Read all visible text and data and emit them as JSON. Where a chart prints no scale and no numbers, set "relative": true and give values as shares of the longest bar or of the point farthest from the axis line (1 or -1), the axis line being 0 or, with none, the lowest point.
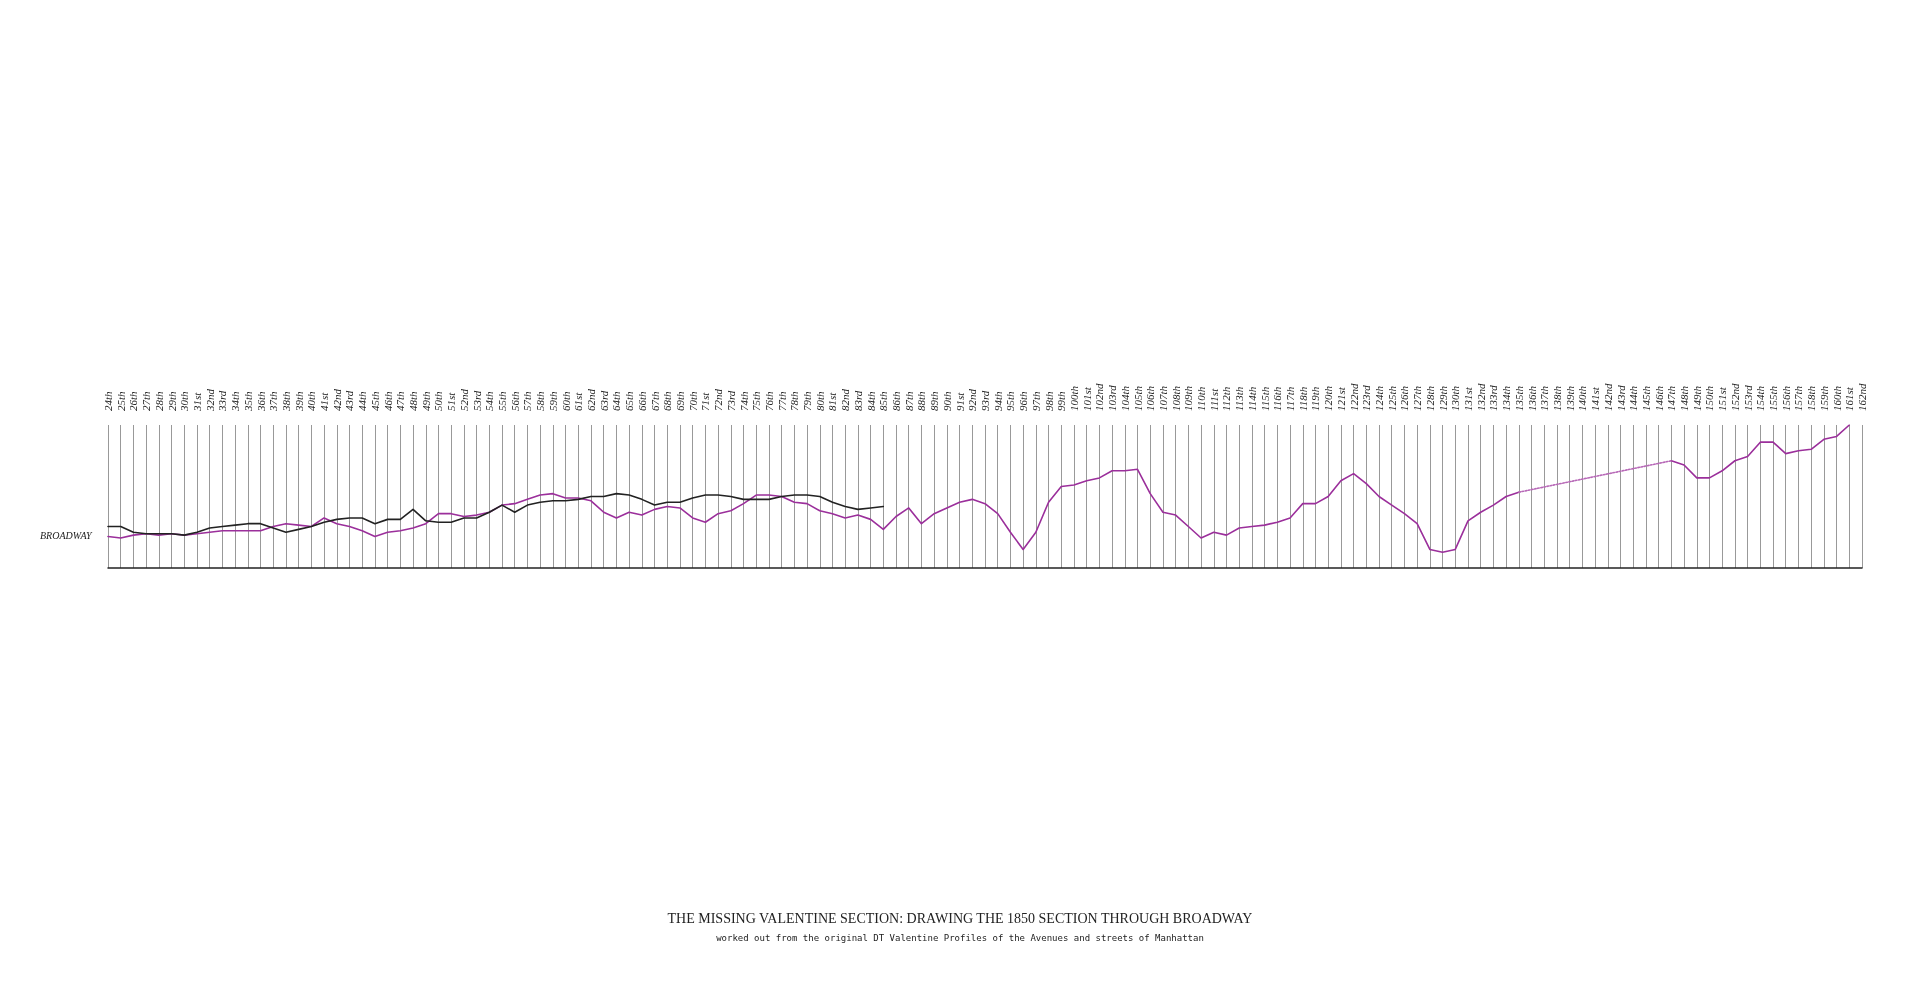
{
  "chart_data": {
    "type": "line",
    "relative": true,
    "grid": "x",
    "marker": "none",
    "title": "THE MISSING VALENTINE SECTION: DRAWING THE 1850 SECTION THROUGH BROADWAY",
    "subtitle": "worked out from the original DT Valentine Profiles of the Avenues and streets of Manhattan",
    "ylabel": "BROADWAY",
    "categories": [
      "24th",
      "25th",
      "26th",
      "27th",
      "28th",
      "29th",
      "30th",
      "31st",
      "32nd",
      "33rd",
      "34th",
      "35th",
      "36th",
      "37th",
      "38th",
      "39th",
      "40th",
      "41st",
      "42nd",
      "43rd",
      "44th",
      "45th",
      "46th",
      "47th",
      "48th",
      "49th",
      "50th",
      "51st",
      "52nd",
      "53rd",
      "54th",
      "55th",
      "56th",
      "57th",
      "58th",
      "59th",
      "60th",
      "61st",
      "62nd",
      "63rd",
      "64th",
      "65th",
      "66th",
      "67th",
      "68th",
      "69th",
      "70th",
      "71st",
      "72nd",
      "73rd",
      "74th",
      "75th",
      "76th",
      "77th",
      "78th",
      "79th",
      "80th",
      "81st",
      "82nd",
      "83rd",
      "84th",
      "85th",
      "86th",
      "87th",
      "88th",
      "89th",
      "90th",
      "91st",
      "92nd",
      "93rd",
      "94th",
      "95th",
      "96th",
      "97th",
      "98th",
      "99th",
      "100th",
      "101st",
      "102nd",
      "103rd",
      "104th",
      "105th",
      "106th",
      "107th",
      "108th",
      "109th",
      "110th",
      "111st",
      "112th",
      "113th",
      "114th",
      "115th",
      "116th",
      "117th",
      "118th",
      "119th",
      "120th",
      "121st",
      "122nd",
      "123rd",
      "124th",
      "125th",
      "126th",
      "127th",
      "128th",
      "129th",
      "130th",
      "131st",
      "132nd",
      "133rd",
      "134th",
      "135th",
      "136th",
      "137th",
      "138th",
      "139th",
      "140th",
      "141st",
      "142nd",
      "143rd",
      "144th",
      "145th",
      "146th",
      "147th",
      "148th",
      "149th",
      "150th",
      "151st",
      "152nd",
      "153rd",
      "154th",
      "155th",
      "156th",
      "157th",
      "158th",
      "159th",
      "160th",
      "161st",
      "162nd"
    ],
    "series": [
      {
        "color": "#9b2f9b",
        "line_style": "solid",
        "values": [
          0.22,
          0.21,
          0.23,
          0.24,
          0.23,
          0.24,
          0.23,
          0.24,
          0.25,
          0.26,
          0.26,
          0.26,
          0.26,
          0.29,
          0.31,
          0.3,
          0.29,
          0.35,
          0.31,
          0.29,
          0.26,
          0.22,
          0.25,
          0.26,
          0.28,
          0.31,
          0.38,
          0.38,
          0.36,
          0.37,
          0.39,
          0.44,
          0.45,
          0.48,
          0.51,
          0.52,
          0.49,
          0.49,
          0.47,
          0.39,
          0.35,
          0.39,
          0.37,
          0.41,
          0.43,
          0.42,
          0.35,
          0.32,
          0.38,
          0.4,
          0.45,
          0.51,
          0.51,
          0.5,
          0.46,
          0.45,
          0.4,
          0.38,
          0.35,
          0.37,
          0.34,
          0.27,
          0.36,
          0.42,
          0.31,
          0.38,
          0.42,
          0.46,
          0.48,
          0.45,
          0.38,
          0.25,
          0.13,
          0.25,
          0.46,
          0.57,
          0.58,
          0.61,
          0.63,
          0.68,
          0.68,
          0.69,
          0.52,
          0.39,
          0.37,
          0.29,
          0.21,
          0.25,
          0.23,
          0.28,
          0.29,
          0.3,
          0.32,
          0.35,
          0.45,
          0.45,
          0.5,
          0.61,
          0.66,
          0.59,
          0.5,
          0.44,
          0.38,
          0.31,
          0.13,
          0.11,
          0.13,
          0.33,
          0.39,
          0.44,
          0.5,
          0.53,
          null,
          null,
          null,
          null,
          null,
          null,
          null,
          null,
          null,
          null,
          null,
          0.75,
          0.72,
          0.63,
          0.63,
          0.68,
          0.75,
          0.78,
          0.88,
          0.88,
          0.8,
          0.82,
          0.83,
          0.9,
          0.92,
          1.0,
          null
        ]
      },
      {
        "color": "#b768b7",
        "line_style": "dotted",
        "x": [
          "135th",
          "147th"
        ],
        "values": [
          0.53,
          0.75
        ]
      },
      {
        "color": "#222222",
        "line_style": "solid",
        "values": [
          0.29,
          0.29,
          0.25,
          0.24,
          0.24,
          0.24,
          0.23,
          0.25,
          0.28,
          0.29,
          0.3,
          0.31,
          0.31,
          0.28,
          0.25,
          0.27,
          0.29,
          0.32,
          0.34,
          0.35,
          0.35,
          0.31,
          0.34,
          0.34,
          0.41,
          0.33,
          0.32,
          0.32,
          0.35,
          0.35,
          0.39,
          0.44,
          0.39,
          0.44,
          0.46,
          0.47,
          0.47,
          0.48,
          0.5,
          0.5,
          0.52,
          0.51,
          0.48,
          0.44,
          0.46,
          0.46,
          0.49,
          0.51,
          0.51,
          0.5,
          0.48,
          0.48,
          0.48,
          0.5,
          0.51,
          0.51,
          0.5,
          0.46,
          0.43,
          0.41,
          0.42,
          0.43,
          null,
          null,
          null,
          null,
          null,
          null,
          null,
          null,
          null,
          null,
          null,
          null,
          null,
          null,
          null,
          null,
          null,
          null,
          null,
          null,
          null,
          null,
          null,
          null,
          null,
          null,
          null,
          null,
          null,
          null,
          null,
          null,
          null,
          null,
          null,
          null,
          null,
          null,
          null,
          null,
          null,
          null,
          null,
          null,
          null,
          null,
          null,
          null,
          null,
          null,
          null,
          null,
          null,
          null,
          null,
          null,
          null,
          null,
          null,
          null,
          null,
          null,
          null,
          null,
          null,
          null,
          null,
          null,
          null,
          null,
          null,
          null,
          null,
          null,
          null,
          null,
          null
        ]
      }
    ]
  }
}
